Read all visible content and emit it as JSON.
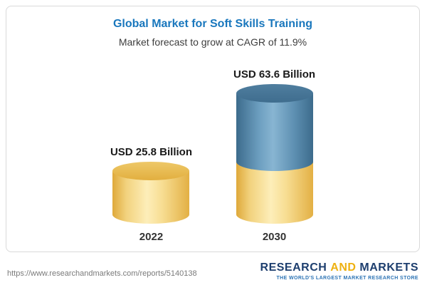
{
  "chart_data": {
    "type": "bar",
    "title": "Global Market for Soft Skills Training",
    "subtitle": "Market forecast to grow at CAGR of 11.9%",
    "categories": [
      "2022",
      "2030"
    ],
    "values": [
      25.8,
      63.6
    ],
    "value_labels": [
      "USD 25.8 Billion",
      "USD 63.6 Billion"
    ],
    "unit": "USD Billion",
    "growth_note": "CAGR of 11.9%",
    "ylim": [
      0,
      70
    ],
    "grid": false,
    "legend_position": "none",
    "colors": {
      "bar_2022": "#F3CE6B",
      "bar_2022_top": "#E7B94E",
      "bar_2030_base": "#F3CE6B",
      "bar_2030_growth": "#5F93B8",
      "bar_2030_top": "#44718F",
      "title": "#1977BD"
    }
  },
  "footer": {
    "url": "https://www.researchandmarkets.com/reports/5140138",
    "logo": {
      "research": "RESEARCH",
      "and": "AND",
      "markets": "MARKETS",
      "tagline": "THE WORLD'S LARGEST MARKET RESEARCH STORE"
    }
  }
}
